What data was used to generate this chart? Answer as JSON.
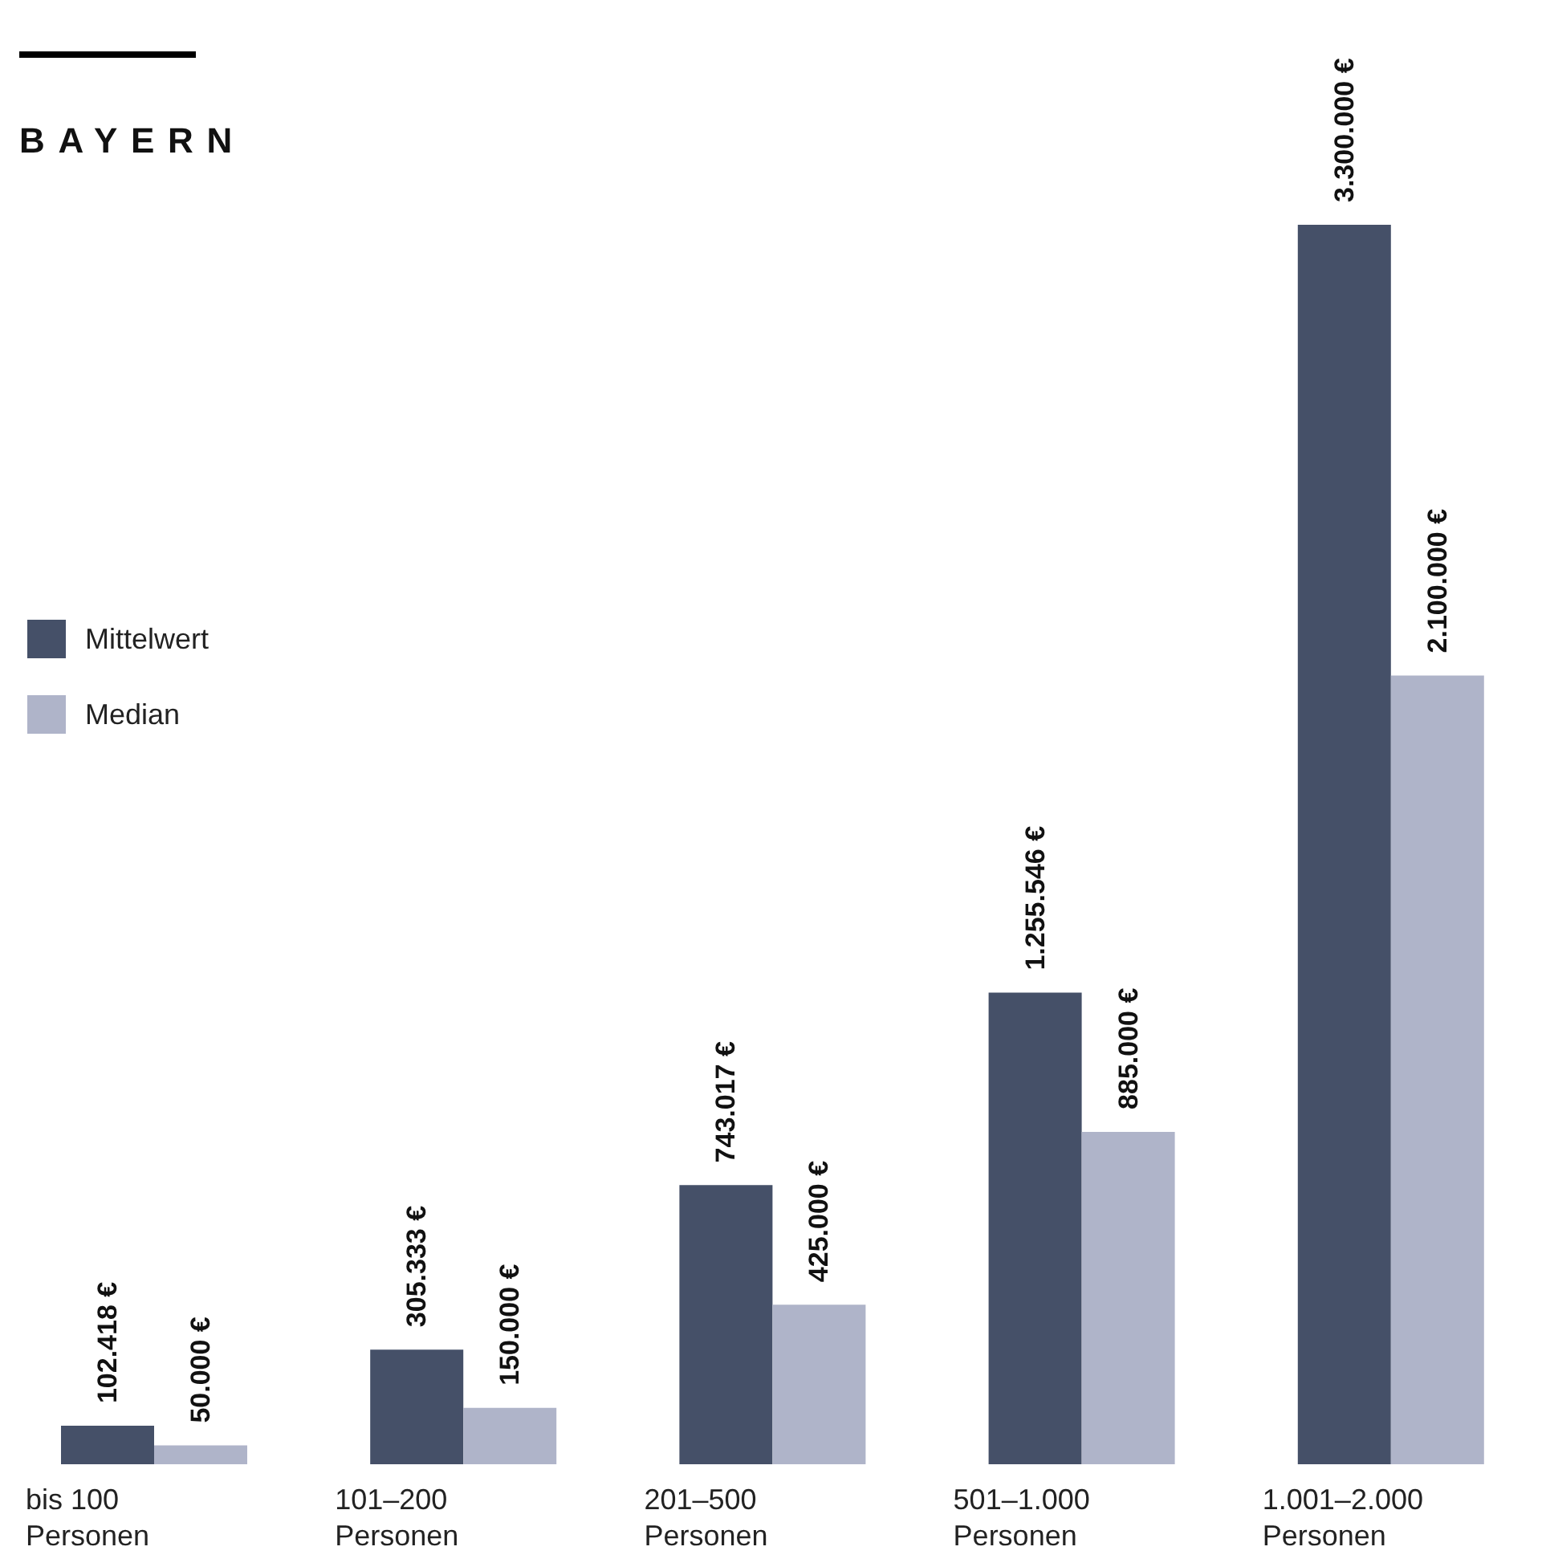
{
  "chart_data": {
    "type": "bar",
    "title": "BAYERN",
    "categories": [
      "bis 100 Personen",
      "101–200 Personen",
      "201–500 Personen",
      "501–1.000 Personen",
      "1.001–2.000 Personen"
    ],
    "series": [
      {
        "name": "Mittelwert",
        "color": "#455068",
        "values": [
          102418,
          305333,
          743017,
          1255546,
          3300000
        ],
        "value_labels": [
          "102.418 €",
          "305.333 €",
          "743.017 €",
          "1.255.546 €",
          "3.300.000 €"
        ]
      },
      {
        "name": "Median",
        "color": "#afb4c9",
        "values": [
          50000,
          150000,
          425000,
          885000,
          2100000
        ],
        "value_labels": [
          "50.000 €",
          "150.000 €",
          "425.000 €",
          "885.000 €",
          "2.100.000 €"
        ]
      }
    ],
    "legend": "left"
  }
}
